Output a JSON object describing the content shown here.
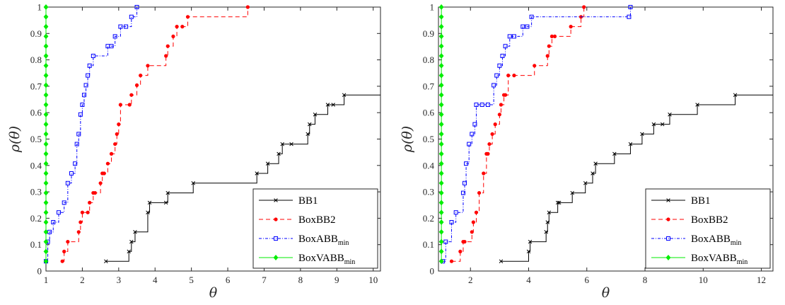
{
  "chart_data": [
    {
      "type": "line",
      "xlabel": "θ",
      "ylabel": "ρ(θ)",
      "xlim": [
        1,
        10.2
      ],
      "ylim": [
        0,
        1
      ],
      "xticks": [
        "1",
        "2",
        "3",
        "4",
        "5",
        "6",
        "7",
        "8",
        "9",
        "10"
      ],
      "yticks": [
        "0",
        "0.1",
        "0.2",
        "0.3",
        "0.4",
        "0.5",
        "0.6",
        "0.7",
        "0.8",
        "0.9",
        "1"
      ],
      "legend_position": "bottom-right",
      "series": [
        {
          "name": "BB1",
          "sub": "",
          "color": "#000000",
          "marker": "x",
          "dash": "",
          "x": [
            2.65,
            3.28,
            3.35,
            3.45,
            3.8,
            3.85,
            4.3,
            4.35,
            5.05,
            6.8,
            7.1,
            7.4,
            7.5,
            7.75,
            8.2,
            8.25,
            8.4,
            8.75,
            8.9,
            9.2,
            10.2
          ],
          "y": [
            0.037,
            0.074,
            0.111,
            0.148,
            0.222,
            0.259,
            0.259,
            0.296,
            0.333,
            0.37,
            0.407,
            0.444,
            0.481,
            0.481,
            0.519,
            0.556,
            0.593,
            0.63,
            0.63,
            0.667,
            0.667
          ]
        },
        {
          "name": "BoxBB2",
          "sub": "",
          "color": "#ff0000",
          "marker": "dot",
          "dash": "6,4",
          "x": [
            1.45,
            1.5,
            1.6,
            1.9,
            1.95,
            2.0,
            2.15,
            2.2,
            2.3,
            2.35,
            2.5,
            2.55,
            2.6,
            2.7,
            2.8,
            2.9,
            2.95,
            3.0,
            3.05,
            3.3,
            3.35,
            3.5,
            3.6,
            3.8,
            4.3,
            4.35,
            4.5,
            4.6,
            4.75,
            4.9,
            6.55
          ],
          "y": [
            0.037,
            0.074,
            0.111,
            0.148,
            0.185,
            0.222,
            0.222,
            0.259,
            0.296,
            0.296,
            0.333,
            0.37,
            0.37,
            0.407,
            0.444,
            0.481,
            0.519,
            0.556,
            0.63,
            0.63,
            0.667,
            0.704,
            0.741,
            0.778,
            0.815,
            0.852,
            0.889,
            0.926,
            0.926,
            0.963,
            1.0
          ]
        },
        {
          "name": "BoxABB",
          "sub": "min",
          "color": "#0000ff",
          "marker": "square",
          "dash": "4,2,1,2",
          "x": [
            1.0,
            1.05,
            1.1,
            1.2,
            1.35,
            1.5,
            1.6,
            1.7,
            1.8,
            1.85,
            1.9,
            1.95,
            2.0,
            2.05,
            2.1,
            2.15,
            2.2,
            2.3,
            2.7,
            2.8,
            2.9,
            3.05,
            3.2,
            3.35,
            3.5
          ],
          "y": [
            0.037,
            0.111,
            0.148,
            0.185,
            0.222,
            0.259,
            0.333,
            0.37,
            0.407,
            0.481,
            0.519,
            0.593,
            0.63,
            0.667,
            0.704,
            0.741,
            0.778,
            0.815,
            0.852,
            0.852,
            0.889,
            0.926,
            0.926,
            0.963,
            1.0
          ]
        },
        {
          "name": "BoxVABB",
          "sub": "min",
          "color": "#00ee00",
          "marker": "diamond",
          "dash": "",
          "x": [
            1,
            1,
            1,
            1,
            1,
            1,
            1,
            1,
            1,
            1,
            1,
            1,
            1,
            1,
            1,
            1,
            1,
            1,
            1,
            1,
            1,
            1,
            1,
            1,
            1,
            1,
            1
          ],
          "y": [
            0.037,
            0.074,
            0.111,
            0.148,
            0.185,
            0.222,
            0.259,
            0.296,
            0.333,
            0.37,
            0.407,
            0.444,
            0.481,
            0.519,
            0.556,
            0.593,
            0.63,
            0.667,
            0.704,
            0.741,
            0.778,
            0.815,
            0.852,
            0.889,
            0.926,
            0.963,
            1.0
          ]
        }
      ]
    },
    {
      "type": "line",
      "xlabel": "θ",
      "ylabel": "ρ(θ)",
      "xlim": [
        0.9,
        12.4
      ],
      "ylim": [
        0,
        1
      ],
      "xticks": [
        "2",
        "4",
        "6",
        "8",
        "10",
        "12"
      ],
      "yticks": [
        "0",
        "0.1",
        "0.2",
        "0.3",
        "0.4",
        "0.5",
        "0.6",
        "0.7",
        "0.8",
        "0.9",
        "1"
      ],
      "legend_position": "bottom-right",
      "series": [
        {
          "name": "BB1",
          "sub": "",
          "color": "#000000",
          "marker": "x",
          "dash": "",
          "x": [
            3.05,
            4.0,
            4.05,
            4.6,
            4.65,
            4.7,
            5.0,
            5.05,
            5.5,
            5.95,
            6.2,
            6.3,
            6.95,
            7.5,
            7.9,
            8.3,
            8.6,
            8.85,
            9.8,
            11.1,
            12.4
          ],
          "y": [
            0.037,
            0.074,
            0.111,
            0.148,
            0.185,
            0.222,
            0.259,
            0.259,
            0.296,
            0.333,
            0.37,
            0.407,
            0.444,
            0.481,
            0.519,
            0.556,
            0.556,
            0.593,
            0.63,
            0.667,
            0.667
          ]
        },
        {
          "name": "BoxBB2",
          "sub": "",
          "color": "#ff0000",
          "marker": "dot",
          "dash": "6,4",
          "x": [
            1.35,
            1.65,
            1.75,
            1.8,
            2.05,
            2.1,
            2.2,
            2.3,
            2.45,
            2.55,
            2.6,
            2.65,
            2.75,
            2.85,
            3.0,
            3.05,
            3.15,
            3.2,
            3.3,
            3.5,
            4.2,
            4.65,
            4.7,
            4.8,
            4.9,
            5.45,
            5.8,
            5.9
          ],
          "y": [
            0.037,
            0.074,
            0.111,
            0.111,
            0.148,
            0.185,
            0.222,
            0.296,
            0.37,
            0.444,
            0.444,
            0.481,
            0.519,
            0.556,
            0.593,
            0.63,
            0.667,
            0.667,
            0.741,
            0.741,
            0.778,
            0.815,
            0.852,
            0.889,
            0.889,
            0.926,
            0.963,
            1.0
          ]
        },
        {
          "name": "BoxABB",
          "sub": "min",
          "color": "#0000ff",
          "marker": "square",
          "dash": "4,2,1,2",
          "x": [
            1.05,
            1.15,
            1.35,
            1.5,
            1.75,
            1.8,
            1.85,
            1.95,
            2.05,
            2.15,
            2.2,
            2.4,
            2.6,
            2.8,
            2.9,
            3.0,
            3.1,
            3.2,
            3.35,
            3.5,
            3.8,
            3.95,
            4.1,
            7.45,
            7.5
          ],
          "y": [
            0.037,
            0.111,
            0.185,
            0.222,
            0.296,
            0.333,
            0.407,
            0.481,
            0.519,
            0.556,
            0.63,
            0.63,
            0.63,
            0.704,
            0.741,
            0.778,
            0.815,
            0.852,
            0.889,
            0.889,
            0.926,
            0.926,
            0.963,
            0.963,
            1.0
          ]
        },
        {
          "name": "BoxVABB",
          "sub": "min",
          "color": "#00ee00",
          "marker": "diamond",
          "dash": "",
          "x": [
            1,
            1,
            1,
            1,
            1,
            1,
            1,
            1,
            1,
            1,
            1,
            1,
            1,
            1,
            1,
            1,
            1,
            1,
            1,
            1,
            1,
            1,
            1,
            1,
            1,
            1,
            1
          ],
          "y": [
            0.037,
            0.074,
            0.111,
            0.148,
            0.185,
            0.222,
            0.259,
            0.296,
            0.333,
            0.37,
            0.407,
            0.444,
            0.481,
            0.519,
            0.556,
            0.593,
            0.63,
            0.667,
            0.704,
            0.741,
            0.778,
            0.815,
            0.852,
            0.889,
            0.926,
            0.963,
            1.0
          ]
        }
      ]
    }
  ]
}
